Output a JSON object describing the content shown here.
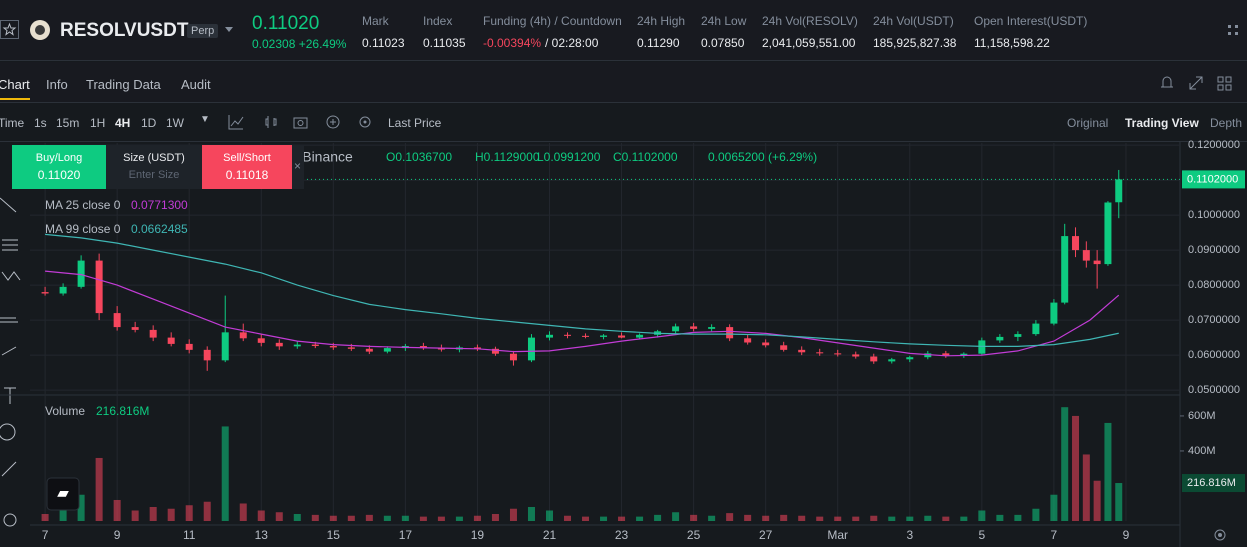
{
  "header": {
    "symbol": "RESOLVUSDT",
    "contract": "Perp",
    "price": "0.11020",
    "change": "0.02308",
    "change_pct": "+26.49%",
    "stats": [
      {
        "label": "Mark",
        "value": "0.11023"
      },
      {
        "label": "Index",
        "value": "0.11035"
      },
      {
        "label": "Funding (4h) / Countdown",
        "value": "-0.00394%",
        "extra": "/ 02:28:00"
      },
      {
        "label": "24h High",
        "value": "0.11290"
      },
      {
        "label": "24h Low",
        "value": "0.07850"
      },
      {
        "label": "24h Vol(RESOLV)",
        "value": "2,041,059,551.00"
      },
      {
        "label": "24h Vol(USDT)",
        "value": "185,925,827.38"
      },
      {
        "label": "Open Interest(USDT)",
        "value": "11,158,598.22"
      }
    ]
  },
  "tabs": [
    "Chart",
    "Info",
    "Trading Data",
    "Audit"
  ],
  "toolbar": {
    "intervals": [
      "Time",
      "1s",
      "15m",
      "1H",
      "4H",
      "1D",
      "1W"
    ],
    "price_type": "Last Price",
    "views": [
      "Original",
      "Trading View",
      "Depth"
    ]
  },
  "order_panel": {
    "buy": "Buy/Long",
    "buy_price": "0.11020",
    "size": "Size (USDT)",
    "size_placeholder": "Enter Size",
    "sell": "Sell/Short",
    "sell_price": "0.11018"
  },
  "chart_data": {
    "type": "candlestick",
    "source": "h · Binance",
    "ohlc": [
      "O0.1036700",
      "H0.1129000",
      "L0.0991200",
      "C0.1102000",
      "0.0065200 (+6.29%)"
    ],
    "up_color": "#0ecb81",
    "down_color": "#f6465d",
    "grid": true,
    "xlim": [
      -0.28,
      31.5
    ],
    "xticks": [
      {
        "value": 0,
        "label": "7"
      },
      {
        "value": 2,
        "label": "9"
      },
      {
        "value": 4,
        "label": "11"
      },
      {
        "value": 6,
        "label": "13"
      },
      {
        "value": 8,
        "label": "15"
      },
      {
        "value": 10,
        "label": "17"
      },
      {
        "value": 12,
        "label": "19"
      },
      {
        "value": 14,
        "label": "21"
      },
      {
        "value": 16,
        "label": "23"
      },
      {
        "value": 18,
        "label": "25"
      },
      {
        "value": 20,
        "label": "27"
      },
      {
        "value": 22,
        "label": "Mar"
      },
      {
        "value": 24,
        "label": "3"
      },
      {
        "value": 26,
        "label": "5"
      },
      {
        "value": 28,
        "label": "7"
      },
      {
        "value": 30,
        "label": "9"
      }
    ],
    "ylim": [
      0.0486,
      0.1206
    ],
    "yticks": [
      {
        "value": 0.05,
        "label": "0.0500000"
      },
      {
        "value": 0.06,
        "label": "0.0600000"
      },
      {
        "value": 0.07,
        "label": "0.0700000"
      },
      {
        "value": 0.08,
        "label": "0.0800000"
      },
      {
        "value": 0.09,
        "label": "0.0900000"
      },
      {
        "value": 0.1,
        "label": "0.1000000"
      },
      {
        "value": 0.11,
        "label": "0.1100000"
      },
      {
        "value": 0.12,
        "label": "0.1200000"
      }
    ],
    "last_price": {
      "value": 0.1102,
      "label": "0.1102000"
    },
    "x": [
      0,
      0.5,
      1,
      1.5,
      2,
      2.5,
      3,
      3.5,
      4,
      4.5,
      5,
      5.5,
      6,
      6.5,
      7,
      7.5,
      8,
      8.5,
      9,
      9.5,
      10,
      10.5,
      11,
      11.5,
      12,
      12.5,
      13,
      13.5,
      14,
      14.5,
      15,
      15.5,
      16,
      16.5,
      17,
      17.5,
      18,
      18.5,
      19,
      19.5,
      20,
      20.5,
      21,
      21.5,
      22,
      22.5,
      23,
      23.5,
      24,
      24.5,
      25,
      25.5,
      26,
      26.5,
      27,
      27.5,
      28,
      28.3,
      28.6,
      28.9,
      29.2,
      29.5,
      29.8
    ],
    "open": [
      0.078,
      0.0776,
      0.0795,
      0.087,
      0.072,
      0.068,
      0.0672,
      0.065,
      0.0632,
      0.0615,
      0.0585,
      0.0665,
      0.0648,
      0.0635,
      0.0625,
      0.063,
      0.0626,
      0.0622,
      0.0618,
      0.061,
      0.062,
      0.0626,
      0.062,
      0.0616,
      0.0622,
      0.0618,
      0.0604,
      0.0585,
      0.065,
      0.0658,
      0.0655,
      0.0652,
      0.0656,
      0.065,
      0.0658,
      0.0668,
      0.0682,
      0.0675,
      0.068,
      0.0648,
      0.0636,
      0.0628,
      0.0615,
      0.0608,
      0.0605,
      0.0602,
      0.0596,
      0.0582,
      0.0588,
      0.0594,
      0.0605,
      0.0598,
      0.0604,
      0.0642,
      0.0652,
      0.066,
      0.069,
      0.075,
      0.094,
      0.09,
      0.087,
      0.086,
      0.10367
    ],
    "high": [
      0.0795,
      0.0805,
      0.0885,
      0.089,
      0.074,
      0.0695,
      0.0685,
      0.0665,
      0.0645,
      0.0625,
      0.077,
      0.069,
      0.066,
      0.0645,
      0.064,
      0.0638,
      0.0635,
      0.0632,
      0.0628,
      0.0625,
      0.0632,
      0.0635,
      0.063,
      0.0627,
      0.063,
      0.0624,
      0.0612,
      0.066,
      0.0668,
      0.0665,
      0.0662,
      0.066,
      0.0665,
      0.0662,
      0.0672,
      0.069,
      0.0692,
      0.0688,
      0.0688,
      0.0658,
      0.0645,
      0.0638,
      0.0625,
      0.0618,
      0.0615,
      0.061,
      0.0604,
      0.0592,
      0.0598,
      0.0612,
      0.0612,
      0.0608,
      0.065,
      0.066,
      0.0668,
      0.07,
      0.076,
      0.0975,
      0.0965,
      0.0925,
      0.09,
      0.104,
      0.1129
    ],
    "low": [
      0.077,
      0.077,
      0.079,
      0.07,
      0.067,
      0.0665,
      0.064,
      0.0625,
      0.0605,
      0.0555,
      0.058,
      0.064,
      0.0625,
      0.0615,
      0.0618,
      0.062,
      0.0615,
      0.0612,
      0.0603,
      0.0605,
      0.0612,
      0.0615,
      0.061,
      0.0608,
      0.0612,
      0.0598,
      0.057,
      0.058,
      0.0642,
      0.0648,
      0.0648,
      0.0645,
      0.0648,
      0.0645,
      0.065,
      0.066,
      0.0668,
      0.0668,
      0.064,
      0.063,
      0.0622,
      0.061,
      0.06,
      0.0598,
      0.0596,
      0.059,
      0.0575,
      0.0576,
      0.058,
      0.0588,
      0.0592,
      0.0592,
      0.06,
      0.0635,
      0.064,
      0.0655,
      0.0685,
      0.0745,
      0.088,
      0.085,
      0.079,
      0.0855,
      0.09912
    ],
    "close": [
      0.0776,
      0.0795,
      0.087,
      0.072,
      0.068,
      0.0672,
      0.065,
      0.0632,
      0.0615,
      0.0585,
      0.0665,
      0.0648,
      0.0635,
      0.0625,
      0.063,
      0.0626,
      0.0622,
      0.0618,
      0.061,
      0.062,
      0.0626,
      0.062,
      0.0616,
      0.0622,
      0.0618,
      0.0604,
      0.0585,
      0.065,
      0.0658,
      0.0655,
      0.0652,
      0.0656,
      0.065,
      0.0658,
      0.0668,
      0.0682,
      0.0675,
      0.068,
      0.0648,
      0.0636,
      0.0628,
      0.0615,
      0.0608,
      0.0605,
      0.0602,
      0.0596,
      0.0582,
      0.0588,
      0.0594,
      0.0605,
      0.0598,
      0.0604,
      0.0642,
      0.0652,
      0.066,
      0.069,
      0.075,
      0.094,
      0.09,
      0.087,
      0.086,
      0.1036,
      0.1102
    ],
    "ma": {
      "x": [
        0,
        1,
        2,
        3,
        4,
        5,
        6,
        7,
        8,
        9,
        10,
        11,
        12,
        13,
        14,
        15,
        16,
        17,
        18,
        19,
        20,
        21,
        22,
        23,
        24,
        25,
        26,
        27,
        28,
        29,
        29.8
      ],
      "series": [
        {
          "name": "MA 25 close 0",
          "label": "0.0771300",
          "color": "#c23cd6",
          "values": [
            0.084,
            0.083,
            0.08,
            0.076,
            0.072,
            0.068,
            0.066,
            0.064,
            0.063,
            0.0625,
            0.0622,
            0.062,
            0.0618,
            0.061,
            0.0612,
            0.0625,
            0.064,
            0.0652,
            0.0665,
            0.0668,
            0.0662,
            0.065,
            0.0635,
            0.062,
            0.0605,
            0.0598,
            0.06,
            0.0612,
            0.064,
            0.07,
            0.07713
          ]
        },
        {
          "name": "MA 99 close 0",
          "label": "0.0662485",
          "color": "#3fb6b4",
          "values": [
            0.0945,
            0.0935,
            0.092,
            0.09,
            0.088,
            0.086,
            0.0835,
            0.08,
            0.077,
            0.0745,
            0.073,
            0.0718,
            0.0705,
            0.0695,
            0.0685,
            0.0675,
            0.0668,
            0.0662,
            0.066,
            0.066,
            0.0658,
            0.0652,
            0.0645,
            0.0638,
            0.0632,
            0.0628,
            0.0625,
            0.0625,
            0.063,
            0.0645,
            0.0662485
          ]
        }
      ]
    },
    "volume": {
      "name": "Volume",
      "current_label": "216.816M",
      "ylim": [
        0,
        691000000
      ],
      "yticks": [
        {
          "value": 400000000,
          "label": "400M"
        },
        {
          "value": 600000000,
          "label": "600M"
        }
      ],
      "values": [
        40000000,
        70000000,
        150000000,
        360000000,
        120000000,
        60000000,
        80000000,
        70000000,
        90000000,
        110000000,
        540000000,
        100000000,
        60000000,
        50000000,
        40000000,
        35000000,
        30000000,
        30000000,
        35000000,
        30000000,
        30000000,
        25000000,
        25000000,
        25000000,
        30000000,
        40000000,
        70000000,
        80000000,
        60000000,
        30000000,
        25000000,
        25000000,
        25000000,
        25000000,
        35000000,
        50000000,
        35000000,
        30000000,
        45000000,
        35000000,
        30000000,
        35000000,
        30000000,
        25000000,
        25000000,
        25000000,
        30000000,
        25000000,
        25000000,
        30000000,
        25000000,
        25000000,
        60000000,
        35000000,
        35000000,
        70000000,
        150000000,
        650000000,
        600000000,
        380000000,
        230000000,
        560000000,
        216816000
      ]
    }
  }
}
